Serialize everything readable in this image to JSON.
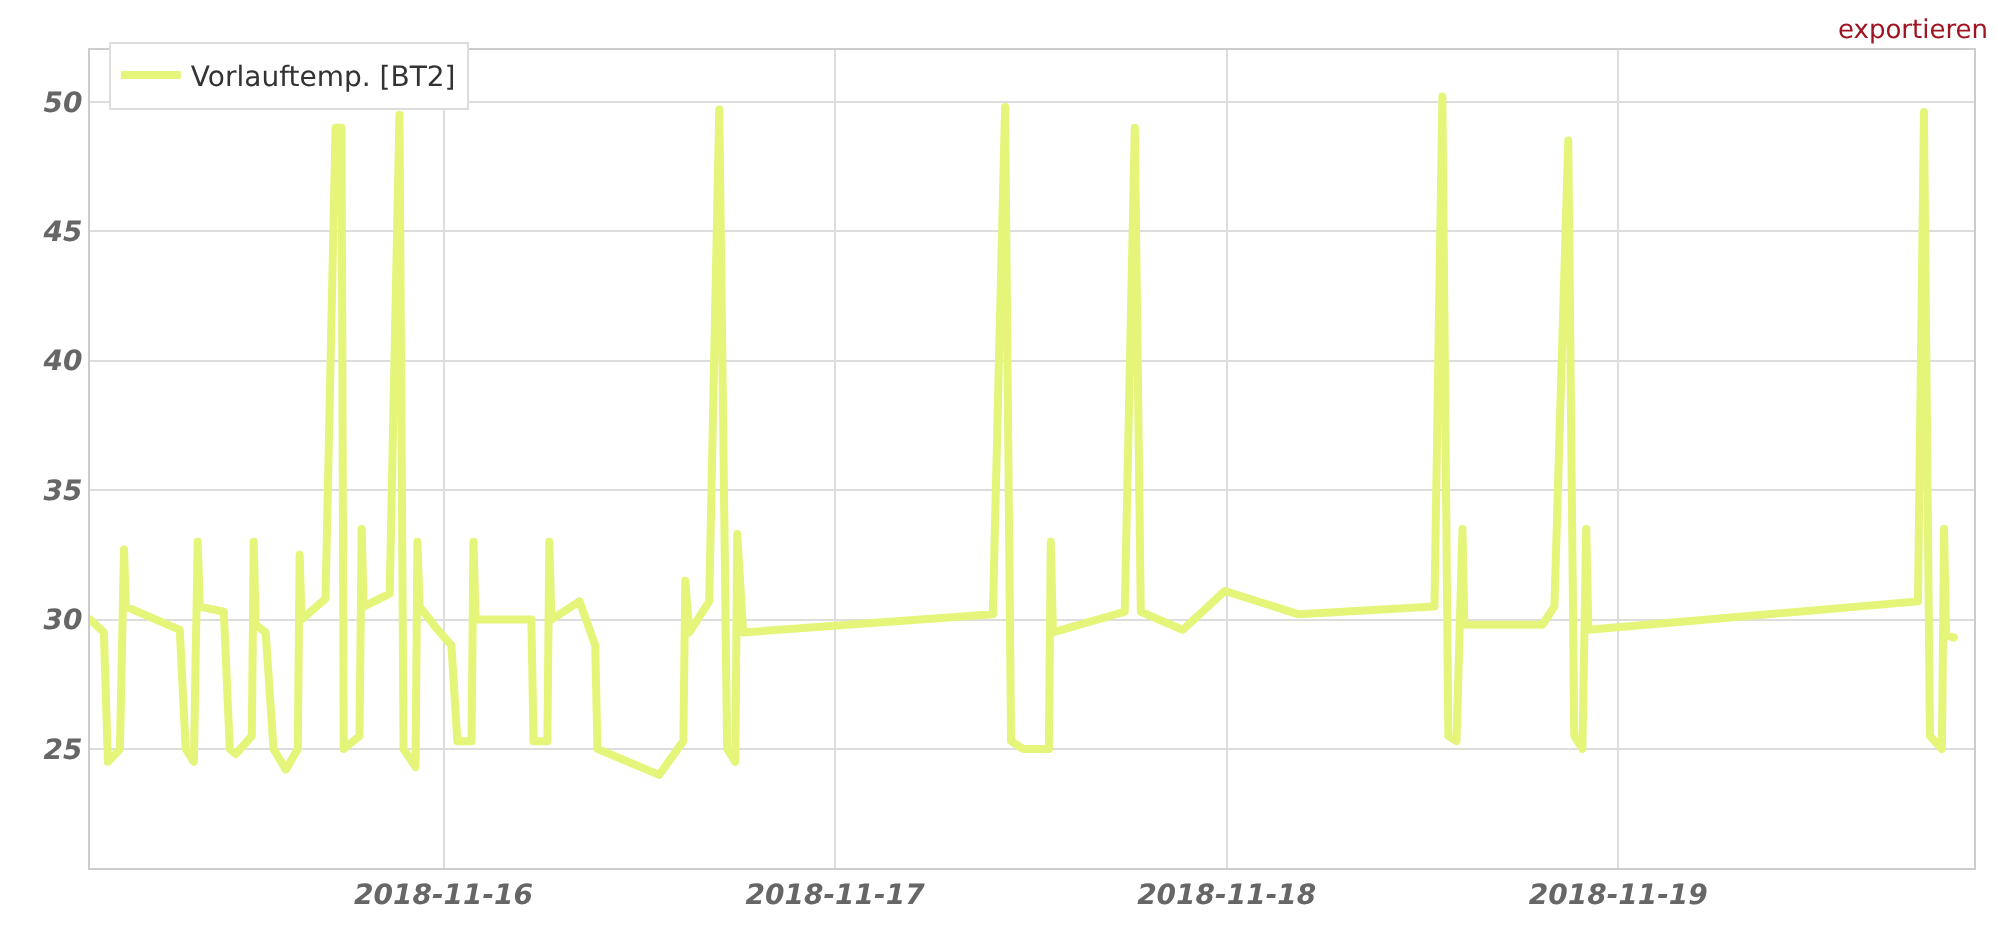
{
  "chart_data": {
    "type": "line",
    "annotations": [
      "exportieren"
    ],
    "x": [
      "2018-11-15T02:20",
      "2018-11-15T03:11",
      "2018-11-15T03:26",
      "2018-11-15T04:10",
      "2018-11-15T04:25",
      "2018-11-15T04:32",
      "2018-11-15T07:50",
      "2018-11-15T08:12",
      "2018-11-15T08:42",
      "2018-11-15T08:56",
      "2018-11-15T09:04",
      "2018-11-15T10:32",
      "2018-11-15T10:54",
      "2018-11-15T11:16",
      "2018-11-15T12:15",
      "2018-11-15T12:22",
      "2018-11-15T12:29",
      "2018-11-15T13:06",
      "2018-11-15T13:35",
      "2018-11-15T14:20",
      "2018-11-15T15:04",
      "2018-11-15T15:11",
      "2018-11-15T15:18",
      "2018-11-15T16:46",
      "2018-11-15T17:23",
      "2018-11-15T17:45",
      "2018-11-15T17:53",
      "2018-11-15T18:51",
      "2018-11-15T18:59",
      "2018-11-15T19:06",
      "2018-11-15T20:42",
      "2018-11-15T21:18",
      "2018-11-15T21:33",
      "2018-11-15T22:17",
      "2018-11-15T22:24",
      "2018-11-15T22:32",
      "2018-11-15T23:31",
      "2018-11-16T00:29",
      "2018-11-16T00:51",
      "2018-11-16T01:43",
      "2018-11-16T01:50",
      "2018-11-16T01:58",
      "2018-11-16T05:23",
      "2018-11-16T05:31",
      "2018-11-16T06:22",
      "2018-11-16T06:29",
      "2018-11-16T06:37",
      "2018-11-16T08:20",
      "2018-11-16T09:18",
      "2018-11-16T09:26",
      "2018-11-16T13:13",
      "2018-11-16T14:42",
      "2018-11-16T14:49",
      "2018-11-16T15:04",
      "2018-11-16T16:17",
      "2018-11-16T16:54",
      "2018-11-16T17:23",
      "2018-11-16T17:53",
      "2018-11-16T18:00",
      "2018-11-16T18:22",
      "2018-11-17T09:40",
      "2018-11-17T10:25",
      "2018-11-17T10:47",
      "2018-11-17T11:31",
      "2018-11-17T13:06",
      "2018-11-17T13:13",
      "2018-11-17T13:21",
      "2018-11-17T17:45",
      "2018-11-17T18:22",
      "2018-11-17T18:44",
      "2018-11-17T21:18",
      "2018-11-17T23:53",
      "2018-11-18T04:25",
      "2018-11-18T12:44",
      "2018-11-18T13:13",
      "2018-11-18T13:35",
      "2018-11-18T14:05",
      "2018-11-18T14:27",
      "2018-11-18T14:34",
      "2018-11-18T19:21",
      "2018-11-18T20:05",
      "2018-11-18T20:56",
      "2018-11-18T21:18",
      "2018-11-18T21:48",
      "2018-11-18T22:02",
      "2018-11-18T22:10",
      "2018-11-19T18:22",
      "2018-11-19T18:44",
      "2018-11-19T19:06",
      "2018-11-19T19:50",
      "2018-11-19T19:58",
      "2018-11-19T20:05",
      "2018-11-19T20:34"
    ],
    "series": [
      {
        "name": "Vorlauftemp. [BT2]",
        "color": "#e4f57a",
        "values": [
          30,
          29.5,
          24.5,
          25,
          32.7,
          30.5,
          29.6,
          25,
          24.5,
          33,
          30.5,
          30.3,
          25,
          24.8,
          25.5,
          33,
          29.8,
          29.5,
          25,
          24.2,
          25,
          32.5,
          30,
          30.8,
          49,
          49,
          25,
          25.5,
          33.5,
          30.5,
          31,
          49.5,
          25,
          24.3,
          33,
          30.5,
          29.7,
          29,
          25.3,
          25.3,
          33,
          30,
          30,
          25.3,
          25.3,
          33,
          30,
          30.7,
          29,
          25,
          24,
          25.3,
          31.5,
          29.5,
          30.7,
          49.7,
          25,
          24.5,
          33.3,
          29.5,
          30.2,
          49.8,
          25.3,
          25,
          25,
          33,
          29.5,
          30.3,
          49,
          30.3,
          29.6,
          31.1,
          30.2,
          30.5,
          50.2,
          25.5,
          25.3,
          33.5,
          29.8,
          29.8,
          30.5,
          48.5,
          25.5,
          25,
          33.5,
          29.6,
          30.7,
          49.6,
          25.5,
          25,
          33.5,
          29.4,
          29.3
        ]
      }
    ],
    "xlim": [
      "2018-11-15T02:20",
      "2018-11-19T21:48"
    ],
    "xticks": [
      {
        "value": "2018-11-16",
        "label": "2018-11-16"
      },
      {
        "value": "2018-11-17",
        "label": "2018-11-17"
      },
      {
        "value": "2018-11-18",
        "label": "2018-11-18"
      },
      {
        "value": "2018-11-19",
        "label": "2018-11-19"
      }
    ],
    "ylim": [
      20.4,
      52
    ],
    "yticks": [
      25,
      30,
      35,
      40,
      45,
      50
    ],
    "grid": true,
    "legend": "top left",
    "line_style": "solid",
    "marker": "none"
  }
}
